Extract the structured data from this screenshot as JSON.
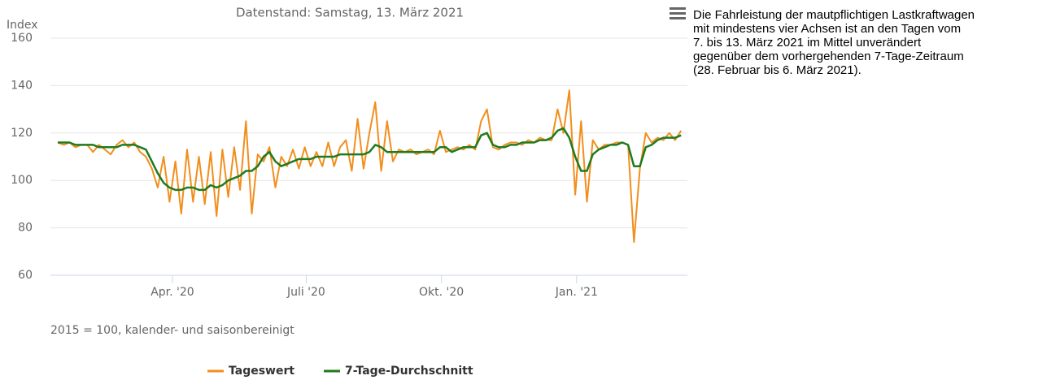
{
  "chart_data": {
    "type": "line",
    "subtitle": "Datenstand: Samstag, 13. März 2021",
    "y_label": "Index",
    "note": "2015 = 100, kalender- und saisonbereinigt",
    "x": [
      13,
      17,
      21,
      25,
      29,
      33,
      37,
      41,
      45,
      49,
      53,
      57,
      61,
      65,
      69,
      73,
      77,
      81,
      85,
      89,
      93,
      97,
      101,
      105,
      109,
      113,
      117,
      121,
      125,
      129,
      133,
      137,
      141,
      145,
      149,
      153,
      157,
      161,
      165,
      169,
      173,
      177,
      181,
      185,
      189,
      193,
      197,
      201,
      205,
      209,
      213,
      217,
      221,
      225,
      229,
      233,
      237,
      241,
      245,
      249,
      253,
      257,
      261,
      265,
      269,
      273,
      277,
      281,
      285,
      289,
      293,
      297,
      301,
      305,
      309,
      313,
      317,
      321,
      325,
      329,
      333,
      337,
      341,
      345,
      349,
      353,
      357,
      361,
      365,
      369,
      373,
      377,
      381,
      385,
      389,
      393,
      397,
      401,
      405,
      409,
      413,
      417,
      421,
      425,
      429,
      433,
      437
    ],
    "series": [
      {
        "name": "Tageswert",
        "color": "#f28e1c",
        "values": [
          116,
          115,
          116,
          114,
          115,
          115,
          112,
          115,
          113,
          111,
          115,
          117,
          114,
          116,
          112,
          110,
          105,
          97,
          110,
          91,
          108,
          86,
          113,
          91,
          110,
          90,
          112,
          85,
          113,
          93,
          114,
          96,
          125,
          86,
          111,
          108,
          114,
          97,
          110,
          106,
          113,
          105,
          114,
          106,
          112,
          106,
          116,
          106,
          114,
          117,
          104,
          126,
          105,
          120,
          133,
          104,
          125,
          108,
          113,
          112,
          113,
          111,
          112,
          113,
          111,
          121,
          112,
          113,
          114,
          113,
          115,
          113,
          125,
          130,
          114,
          113,
          115,
          116,
          116,
          115,
          117,
          116,
          118,
          117,
          117,
          130,
          120,
          138,
          94,
          125,
          91,
          117,
          113,
          115,
          115,
          116,
          116,
          115,
          74,
          105,
          120,
          116,
          118,
          117,
          120,
          117,
          121
        ]
      },
      {
        "name": "7-Tage-Durchschnitt",
        "color": "#1e7b1e",
        "values": [
          116,
          116,
          116,
          115,
          115,
          115,
          115,
          114,
          114,
          114,
          114,
          115,
          115,
          115,
          114,
          113,
          108,
          103,
          99,
          97,
          96,
          96,
          97,
          97,
          96,
          96,
          98,
          97,
          98,
          100,
          101,
          102,
          104,
          104,
          106,
          110,
          112,
          108,
          106,
          107,
          108,
          109,
          109,
          109,
          110,
          110,
          110,
          110,
          111,
          111,
          111,
          111,
          111,
          112,
          115,
          114,
          112,
          112,
          112,
          112,
          112,
          112,
          112,
          112,
          112,
          114,
          114,
          112,
          113,
          114,
          114,
          114,
          119,
          120,
          115,
          114,
          114,
          115,
          115,
          116,
          116,
          116,
          117,
          117,
          118,
          121,
          122,
          118,
          110,
          104,
          104,
          111,
          113,
          114,
          115,
          115,
          116,
          115,
          106,
          106,
          114,
          115,
          117,
          118,
          118,
          118,
          119
        ]
      }
    ],
    "xlim": [
      8,
      443
    ],
    "xticks": [
      {
        "value": 91,
        "label": "Apr. '20"
      },
      {
        "value": 182,
        "label": "Juli '20"
      },
      {
        "value": 274,
        "label": "Okt. '20"
      },
      {
        "value": 366,
        "label": "Jan. '21"
      }
    ],
    "ylim": [
      60,
      160
    ],
    "yticks": [
      60,
      80,
      100,
      120,
      140,
      160
    ],
    "grid": true,
    "legend": "bottom"
  },
  "description": [
    "Die Fahrleistung der mautpflichtigen Lastkraftwagen",
    "mit mindestens vier Achsen ist an den Tagen vom",
    "7. bis 13. März 2021 im Mittel unverändert",
    "gegenüber dem vorhergehenden 7-Tage-Zeitraum",
    "(28. Februar bis 6. März 2021)."
  ]
}
